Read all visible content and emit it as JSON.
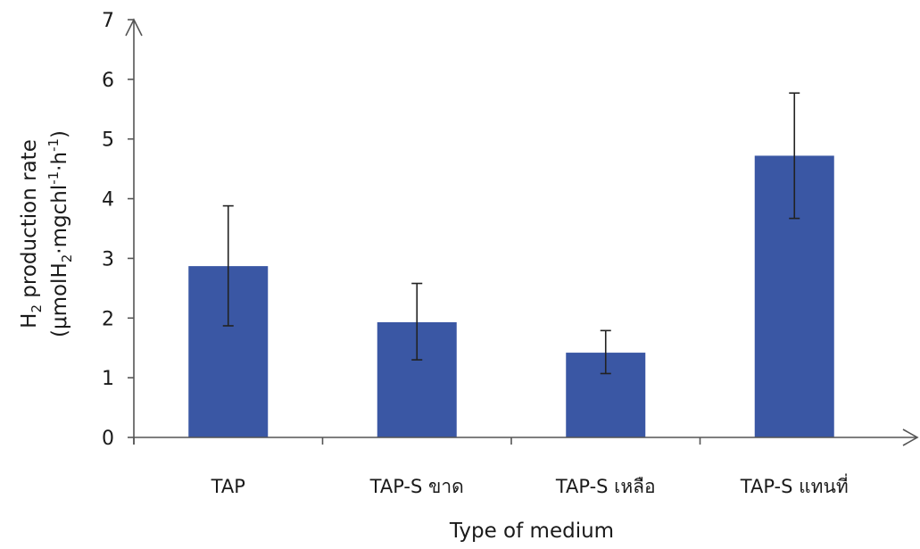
{
  "chart_data": {
    "type": "bar",
    "title": "",
    "xlabel": "Type of medium",
    "ylabel": {
      "line1_main": "H",
      "line1_sub": "2",
      "line1_rest": " production rate",
      "line2_a": "(μmolH",
      "line2_sub": "2",
      "line2_b": "·mgchl",
      "line2_sup1": "-1",
      "line2_c": "·h",
      "line2_sup2": "-1",
      "line2_d": ")"
    },
    "categories": [
      "TAP",
      "TAP-S ขาด",
      "TAP-S เหลือ",
      "TAP-S แทนที่"
    ],
    "values": [
      2.87,
      1.93,
      1.42,
      4.72
    ],
    "error_upper": [
      3.88,
      2.58,
      1.79,
      5.77
    ],
    "error_lower": [
      1.87,
      1.3,
      1.07,
      3.67
    ],
    "ylim": [
      0,
      7
    ],
    "yticks": [
      0,
      1,
      2,
      3,
      4,
      5,
      6,
      7
    ],
    "grid": false,
    "bar_color": "#3a57a4",
    "axis_color": "#555555"
  }
}
